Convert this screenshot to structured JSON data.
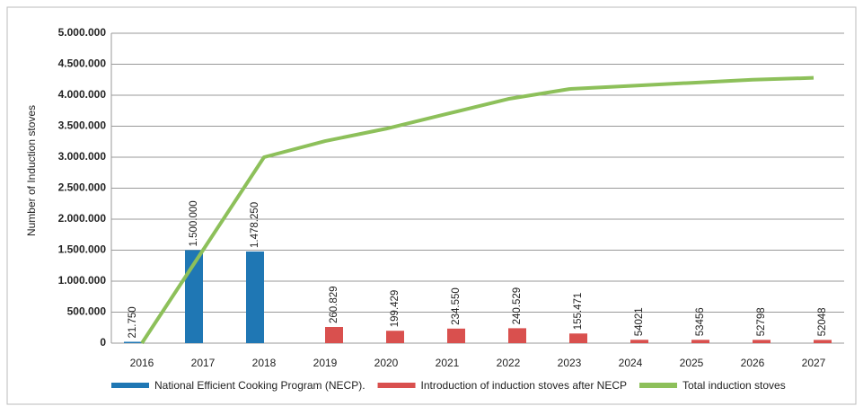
{
  "chart_data": {
    "type": "bar",
    "y_label": "Number of Induction stoves",
    "categories": [
      "2016",
      "2017",
      "2018",
      "2019",
      "2020",
      "2021",
      "2022",
      "2023",
      "2024",
      "2025",
      "2026",
      "2027"
    ],
    "series": [
      {
        "name": "National Efficient Cooking Program (NECP).",
        "color": "#1f77b4",
        "type": "bar",
        "values": [
          21750,
          1500000,
          1478250,
          null,
          null,
          null,
          null,
          null,
          null,
          null,
          null,
          null
        ],
        "value_labels": [
          "21.750",
          "1.500.000",
          "1.478.250",
          null,
          null,
          null,
          null,
          null,
          null,
          null,
          null,
          null
        ]
      },
      {
        "name": "Introduction of induction stoves after NECP",
        "color": "#d9504e",
        "type": "bar",
        "values": [
          null,
          null,
          null,
          260829,
          199429,
          234550,
          240529,
          155471,
          54021,
          53456,
          52798,
          52048
        ],
        "value_labels": [
          null,
          null,
          null,
          "260.829",
          "199.429",
          "234.550",
          "240.529",
          "155.471",
          "54021",
          "53456",
          "52798",
          "52048"
        ]
      },
      {
        "name": "Total induction stoves",
        "color": "#8dc05a",
        "type": "line",
        "values": [
          0,
          1500000,
          3000000,
          3260000,
          3460000,
          3700000,
          3940000,
          4100000,
          4150000,
          4200000,
          4250000,
          4280000
        ]
      }
    ],
    "ylim": [
      0,
      5000000
    ],
    "yticks": [
      0,
      {
        "value": 500000,
        "label": "500.000"
      },
      {
        "value": 1000000,
        "label": "1.000.000"
      },
      {
        "value": 1500000,
        "label": "1.500.000"
      },
      {
        "value": 2000000,
        "label": "2.000.000"
      },
      {
        "value": 2500000,
        "label": "2.500.000"
      },
      {
        "value": 3000000,
        "label": "3.000.000"
      },
      {
        "value": 3500000,
        "label": "3.500.000"
      },
      {
        "value": 4000000,
        "label": "4.000.000"
      },
      {
        "value": 4500000,
        "label": "4.500.000"
      },
      {
        "value": 5000000,
        "label": "5.000.000"
      }
    ],
    "grid": true,
    "legend": "bottom"
  }
}
